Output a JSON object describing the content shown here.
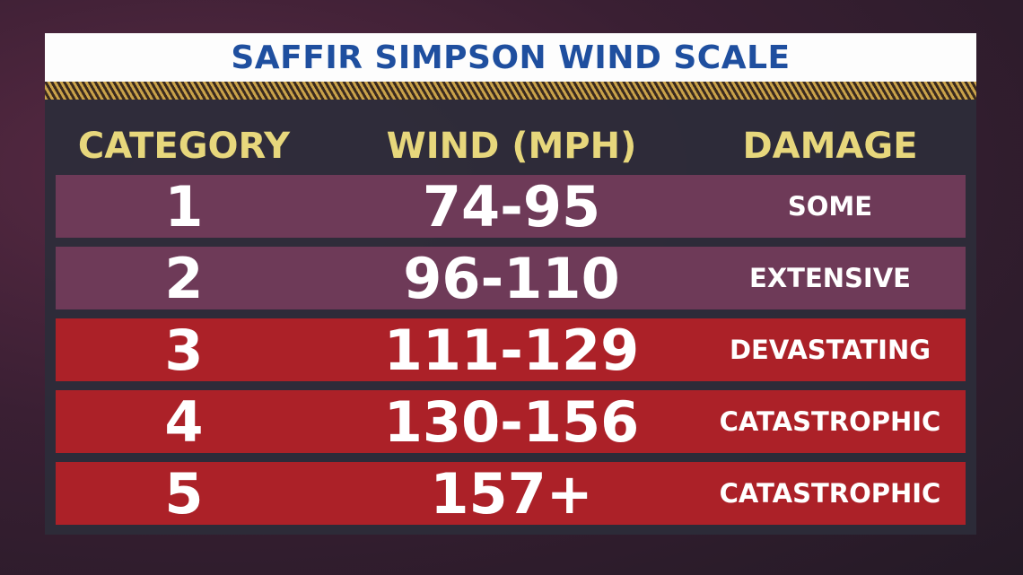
{
  "title": "SAFFIR SIMPSON WIND SCALE",
  "table": {
    "header": [
      "CATEGORY",
      "WIND (MPH)",
      "DAMAGE"
    ],
    "rows": [
      [
        "1",
        "74-95",
        "SOME"
      ],
      [
        "2",
        "96-110",
        "EXTENSIVE"
      ],
      [
        "3",
        "111-129",
        "DEVASTATING"
      ],
      [
        "4",
        "130-156",
        "CATASTROPHIC"
      ],
      [
        "5",
        "157+",
        "CATASTROPHIC"
      ]
    ]
  }
}
